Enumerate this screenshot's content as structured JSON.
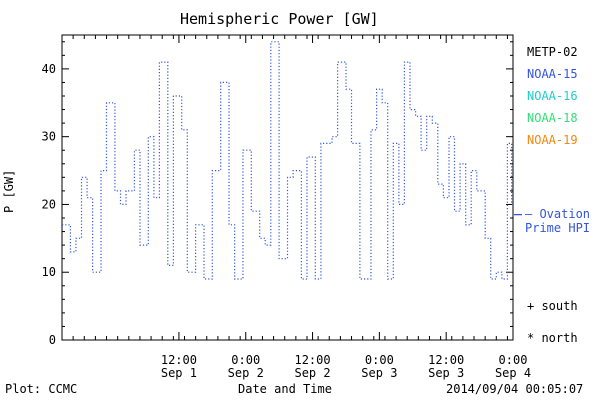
{
  "chart_data": {
    "type": "line",
    "title": "Hemispheric Power [GW]",
    "ylabel": "P [GW]",
    "xlabel": "Date and Time",
    "ylim": [
      0,
      45
    ],
    "yticks": [
      0,
      10,
      20,
      30,
      40
    ],
    "xlim": [
      "2014-08-31T15:00",
      "2014-09-04T00:00"
    ],
    "xticks": [
      {
        "at": "2014-09-01T12:00",
        "time": "12:00",
        "date": "Sep 1"
      },
      {
        "at": "2014-09-02T00:00",
        "time": "0:00",
        "date": "Sep 2"
      },
      {
        "at": "2014-09-02T12:00",
        "time": "12:00",
        "date": "Sep 2"
      },
      {
        "at": "2014-09-03T00:00",
        "time": "0:00",
        "date": "Sep 3"
      },
      {
        "at": "2014-09-03T12:00",
        "time": "12:00",
        "date": "Sep 3"
      },
      {
        "at": "2014-09-04T00:00",
        "time": "0:00",
        "date": "Sep 4"
      }
    ],
    "series": [
      {
        "name": "NOAA-15",
        "style": "dotted-step",
        "color": "#3355dd",
        "x": [
          "2014-08-31T15:00",
          "2014-08-31T16:30",
          "2014-08-31T17:30",
          "2014-08-31T18:30",
          "2014-08-31T19:30",
          "2014-08-31T20:30",
          "2014-08-31T22:00",
          "2014-08-31T23:00",
          "2014-09-01T00:30",
          "2014-09-01T01:30",
          "2014-09-01T02:30",
          "2014-09-01T04:00",
          "2014-09-01T05:00",
          "2014-09-01T06:30",
          "2014-09-01T07:30",
          "2014-09-01T08:30",
          "2014-09-01T10:00",
          "2014-09-01T11:00",
          "2014-09-01T12:30",
          "2014-09-01T13:30",
          "2014-09-01T15:00",
          "2014-09-01T16:30",
          "2014-09-01T18:00",
          "2014-09-01T19:30",
          "2014-09-01T21:00",
          "2014-09-01T22:00",
          "2014-09-01T23:30",
          "2014-09-02T01:00",
          "2014-09-02T02:30",
          "2014-09-02T03:30",
          "2014-09-02T04:30",
          "2014-09-02T06:00",
          "2014-09-02T07:30",
          "2014-09-02T08:30",
          "2014-09-02T10:00",
          "2014-09-02T11:00",
          "2014-09-02T12:30",
          "2014-09-02T13:30",
          "2014-09-02T15:30",
          "2014-09-02T16:30",
          "2014-09-02T18:00",
          "2014-09-02T19:00",
          "2014-09-02T20:30",
          "2014-09-02T22:30",
          "2014-09-02T23:30",
          "2014-09-03T00:30",
          "2014-09-03T01:30",
          "2014-09-03T02:30",
          "2014-09-03T03:30",
          "2014-09-03T04:30",
          "2014-09-03T05:30",
          "2014-09-03T06:30",
          "2014-09-03T07:30",
          "2014-09-03T08:30",
          "2014-09-03T09:30",
          "2014-09-03T10:30",
          "2014-09-03T11:30",
          "2014-09-03T12:30",
          "2014-09-03T13:30",
          "2014-09-03T14:30",
          "2014-09-03T15:30",
          "2014-09-03T16:30",
          "2014-09-03T17:30",
          "2014-09-03T19:00",
          "2014-09-03T20:00",
          "2014-09-03T21:00",
          "2014-09-03T22:00",
          "2014-09-03T23:00",
          "2014-09-03T23:45"
        ],
        "y": [
          17,
          13,
          15,
          24,
          21,
          10,
          25,
          35,
          22,
          20,
          22,
          28,
          14,
          30,
          21,
          41,
          11,
          36,
          31,
          10,
          17,
          9,
          25,
          38,
          17,
          9,
          28,
          19,
          15,
          14,
          44,
          12,
          24,
          25,
          9,
          27,
          9,
          29,
          30,
          41,
          37,
          29,
          9,
          31,
          37,
          35,
          9,
          29,
          20,
          41,
          34,
          33,
          28,
          33,
          32,
          23,
          21,
          30,
          19,
          26,
          17,
          25,
          22,
          15,
          9,
          10,
          9,
          29,
          20
        ]
      }
    ],
    "reference_line": {
      "label": "Ovation",
      "label2": "Prime HPI",
      "value": 18.5
    }
  },
  "legend": [
    {
      "label": "METP-02",
      "color": "#000000"
    },
    {
      "label": "NOAA-15",
      "color": "#3355dd"
    },
    {
      "label": "NOAA-16",
      "color": "#22cccc"
    },
    {
      "label": "NOAA-18",
      "color": "#33dd77"
    },
    {
      "label": "NOAA-19",
      "color": "#ee8811"
    }
  ],
  "markers": {
    "south": "+ south",
    "north": "* north"
  },
  "footer": {
    "left": "Plot: CCMC",
    "right": "2014/09/04 00:05:07"
  },
  "ovation": {
    "line1": "— Ovation",
    "line2": "Prime HPI",
    "color": "#3355dd"
  }
}
